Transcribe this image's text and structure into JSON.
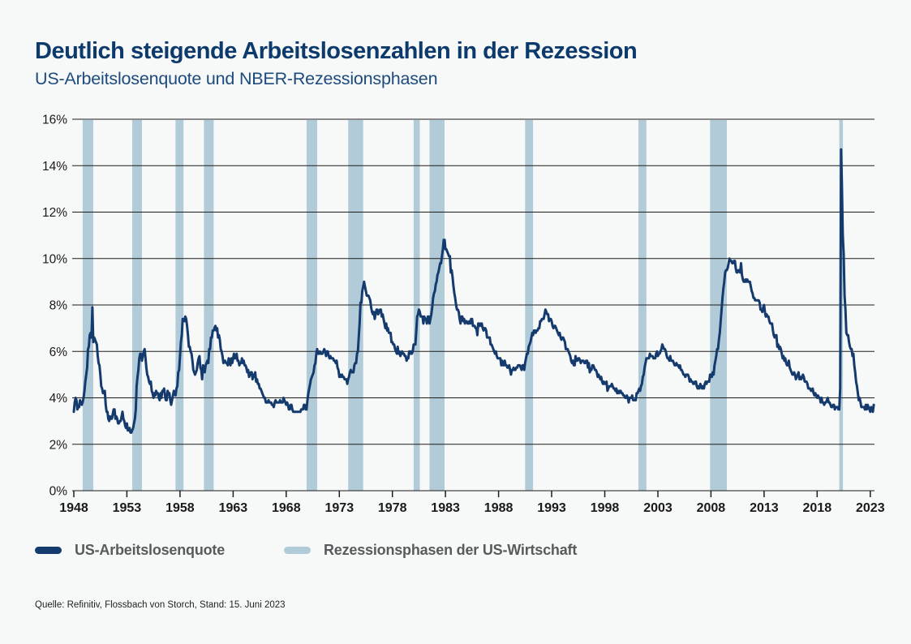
{
  "header": {
    "title": "Deutlich steigende Arbeitslosenzahlen in der Rezession",
    "subtitle": "US-Arbeitslosenquote und NBER-Rezessionsphasen"
  },
  "legend": {
    "series_label": "US-Arbeitslosenquote",
    "recession_label": "Rezessionsphasen der US-Wirtschaft"
  },
  "source_note": "Quelle: Refinitiv, Flossbach von Storch, Stand: 15. Juni 2023",
  "colors": {
    "background": "#f7f8f8",
    "title": "#0d3a6c",
    "subtitle": "#1d4b7d",
    "line": "#143a6e",
    "recession_band": "#b1ccd8",
    "grid": "#1d1d1b",
    "axis_text": "#1a1a1a",
    "legend_text": "#595a5c"
  },
  "chart_data": {
    "type": "line",
    "title": "Deutlich steigende Arbeitslosenzahlen in der Rezession",
    "subtitle": "US-Arbeitslosenquote und NBER-Rezessionsphasen",
    "grid": true,
    "legend_position": "bottom",
    "ylim": [
      0,
      16
    ],
    "y_tick_step": 2,
    "y_tick_suffix": "%",
    "x_start_year": 1948,
    "x_end_year": 2023.42,
    "x_tick_years": [
      1948,
      1953,
      1958,
      1963,
      1968,
      1973,
      1978,
      1983,
      1988,
      1993,
      1998,
      2003,
      2008,
      2013,
      2018,
      2023
    ],
    "recessions": [
      {
        "start": 1948.833,
        "end": 1949.833
      },
      {
        "start": 1953.5,
        "end": 1954.417
      },
      {
        "start": 1957.583,
        "end": 1958.333
      },
      {
        "start": 1960.25,
        "end": 1961.167
      },
      {
        "start": 1969.917,
        "end": 1970.917
      },
      {
        "start": 1973.833,
        "end": 1975.25
      },
      {
        "start": 1980.0,
        "end": 1980.583
      },
      {
        "start": 1981.5,
        "end": 1982.917
      },
      {
        "start": 1990.5,
        "end": 1991.25
      },
      {
        "start": 2001.167,
        "end": 2001.917
      },
      {
        "start": 2007.917,
        "end": 2009.5
      },
      {
        "start": 2020.083,
        "end": 2020.417
      }
    ],
    "series": [
      {
        "name": "US-Arbeitslosenquote",
        "frequency": "monthly",
        "start": "1948-01",
        "end": "2023-05",
        "unit": "%",
        "values": [
          3.4,
          3.8,
          4.0,
          3.9,
          3.5,
          3.6,
          3.6,
          3.9,
          3.8,
          3.7,
          3.8,
          4.0,
          4.3,
          4.7,
          5.0,
          5.3,
          6.1,
          6.2,
          6.7,
          6.8,
          6.6,
          7.9,
          6.4,
          6.6,
          6.5,
          6.4,
          6.3,
          5.8,
          5.5,
          5.4,
          5.0,
          4.5,
          4.4,
          4.2,
          4.2,
          4.3,
          3.7,
          3.4,
          3.4,
          3.1,
          3.0,
          3.2,
          3.1,
          3.1,
          3.3,
          3.5,
          3.5,
          3.1,
          3.2,
          3.1,
          2.9,
          2.9,
          3.0,
          3.0,
          3.2,
          3.4,
          3.1,
          3.0,
          2.8,
          2.7,
          2.9,
          2.6,
          2.6,
          2.7,
          2.5,
          2.5,
          2.6,
          2.7,
          2.9,
          3.1,
          3.5,
          4.5,
          4.9,
          5.2,
          5.7,
          5.9,
          5.9,
          5.6,
          5.8,
          6.0,
          6.1,
          5.7,
          5.3,
          5.0,
          4.9,
          4.7,
          4.6,
          4.7,
          4.3,
          4.2,
          4.0,
          4.2,
          4.1,
          4.3,
          4.2,
          4.2,
          4.0,
          3.9,
          4.2,
          4.0,
          4.3,
          4.3,
          4.4,
          4.1,
          3.9,
          3.9,
          4.3,
          4.2,
          4.2,
          3.9,
          3.7,
          3.9,
          4.1,
          4.3,
          4.2,
          4.1,
          4.4,
          4.5,
          5.1,
          5.2,
          5.8,
          6.4,
          6.7,
          7.4,
          7.4,
          7.3,
          7.5,
          7.4,
          7.1,
          6.7,
          6.2,
          6.2,
          6.0,
          5.9,
          5.6,
          5.2,
          5.1,
          5.0,
          5.1,
          5.2,
          5.5,
          5.7,
          5.8,
          5.3,
          5.2,
          4.8,
          5.4,
          5.2,
          5.1,
          5.4,
          5.5,
          5.6,
          5.5,
          6.1,
          6.1,
          6.6,
          6.6,
          6.9,
          6.9,
          7.0,
          7.1,
          6.9,
          7.0,
          6.6,
          6.7,
          6.5,
          6.1,
          6.0,
          5.8,
          5.5,
          5.6,
          5.6,
          5.5,
          5.5,
          5.4,
          5.7,
          5.6,
          5.4,
          5.7,
          5.5,
          5.7,
          5.9,
          5.7,
          5.7,
          5.9,
          5.6,
          5.6,
          5.4,
          5.5,
          5.5,
          5.7,
          5.5,
          5.6,
          5.4,
          5.4,
          5.3,
          5.1,
          5.2,
          4.9,
          5.0,
          5.1,
          5.1,
          4.8,
          5.0,
          4.9,
          5.1,
          4.7,
          4.8,
          4.6,
          4.6,
          4.4,
          4.4,
          4.3,
          4.2,
          4.1,
          4.0,
          4.0,
          3.8,
          3.8,
          3.8,
          3.9,
          3.8,
          3.8,
          3.8,
          3.7,
          3.7,
          3.6,
          3.8,
          3.9,
          3.8,
          3.8,
          3.8,
          3.8,
          3.9,
          3.8,
          3.8,
          3.8,
          4.0,
          3.9,
          3.8,
          3.7,
          3.8,
          3.7,
          3.5,
          3.5,
          3.7,
          3.7,
          3.5,
          3.4,
          3.4,
          3.4,
          3.4,
          3.4,
          3.4,
          3.4,
          3.4,
          3.4,
          3.5,
          3.5,
          3.5,
          3.7,
          3.7,
          3.5,
          3.5,
          3.9,
          4.2,
          4.4,
          4.6,
          4.8,
          4.9,
          5.0,
          5.1,
          5.4,
          5.5,
          5.9,
          6.1,
          5.9,
          5.9,
          6.0,
          5.9,
          5.9,
          5.9,
          6.0,
          6.1,
          6.0,
          5.8,
          6.0,
          6.0,
          5.8,
          5.7,
          5.8,
          5.7,
          5.7,
          5.7,
          5.6,
          5.6,
          5.5,
          5.6,
          5.3,
          5.2,
          4.9,
          5.0,
          4.9,
          5.0,
          4.9,
          4.9,
          4.8,
          4.8,
          4.8,
          4.6,
          4.8,
          4.9,
          5.1,
          5.2,
          5.1,
          5.1,
          5.1,
          5.4,
          5.5,
          5.5,
          5.9,
          6.0,
          6.6,
          7.2,
          8.1,
          8.1,
          8.6,
          8.8,
          9.0,
          8.8,
          8.6,
          8.4,
          8.4,
          8.4,
          8.3,
          8.2,
          7.9,
          7.7,
          7.6,
          7.7,
          7.4,
          7.6,
          7.8,
          7.8,
          7.6,
          7.7,
          7.8,
          7.8,
          7.5,
          7.6,
          7.4,
          7.2,
          7.0,
          7.2,
          6.9,
          7.0,
          6.8,
          6.8,
          6.8,
          6.4,
          6.4,
          6.3,
          6.3,
          6.1,
          6.0,
          5.9,
          6.2,
          5.9,
          6.0,
          5.8,
          5.9,
          6.0,
          5.9,
          5.9,
          5.8,
          5.8,
          5.6,
          5.7,
          5.7,
          6.0,
          5.9,
          6.0,
          5.9,
          6.0,
          6.3,
          6.3,
          6.3,
          6.9,
          7.5,
          7.6,
          7.8,
          7.7,
          7.5,
          7.5,
          7.5,
          7.2,
          7.5,
          7.4,
          7.4,
          7.2,
          7.5,
          7.5,
          7.2,
          7.4,
          7.6,
          7.9,
          8.3,
          8.5,
          8.6,
          8.9,
          9.0,
          9.3,
          9.4,
          9.6,
          9.8,
          9.8,
          10.1,
          10.4,
          10.8,
          10.8,
          10.4,
          10.4,
          10.3,
          10.2,
          10.1,
          10.1,
          9.4,
          9.5,
          9.2,
          8.8,
          8.5,
          8.3,
          8.0,
          7.8,
          7.8,
          7.7,
          7.4,
          7.2,
          7.5,
          7.5,
          7.3,
          7.4,
          7.2,
          7.3,
          7.3,
          7.2,
          7.2,
          7.3,
          7.2,
          7.4,
          7.4,
          7.1,
          7.1,
          7.1,
          7.0,
          7.0,
          6.7,
          7.2,
          7.2,
          7.1,
          7.2,
          7.2,
          7.0,
          6.9,
          7.0,
          7.0,
          6.9,
          6.6,
          6.6,
          6.6,
          6.6,
          6.3,
          6.3,
          6.2,
          6.1,
          6.0,
          5.9,
          6.0,
          5.8,
          5.7,
          5.7,
          5.7,
          5.7,
          5.4,
          5.6,
          5.4,
          5.4,
          5.6,
          5.4,
          5.4,
          5.3,
          5.3,
          5.4,
          5.2,
          5.0,
          5.2,
          5.2,
          5.3,
          5.2,
          5.2,
          5.3,
          5.3,
          5.4,
          5.4,
          5.4,
          5.3,
          5.2,
          5.4,
          5.4,
          5.2,
          5.5,
          5.7,
          5.9,
          5.9,
          6.2,
          6.3,
          6.4,
          6.6,
          6.8,
          6.7,
          6.9,
          6.9,
          6.8,
          6.9,
          6.9,
          7.0,
          7.0,
          7.3,
          7.3,
          7.4,
          7.4,
          7.4,
          7.6,
          7.8,
          7.7,
          7.6,
          7.6,
          7.3,
          7.4,
          7.4,
          7.3,
          7.1,
          7.0,
          7.1,
          7.1,
          7.0,
          6.9,
          6.8,
          6.7,
          6.8,
          6.6,
          6.5,
          6.6,
          6.6,
          6.5,
          6.4,
          6.1,
          6.1,
          6.1,
          6.0,
          5.9,
          5.8,
          5.6,
          5.5,
          5.6,
          5.4,
          5.4,
          5.8,
          5.6,
          5.6,
          5.7,
          5.7,
          5.6,
          5.5,
          5.6,
          5.6,
          5.6,
          5.5,
          5.5,
          5.6,
          5.6,
          5.3,
          5.5,
          5.1,
          5.2,
          5.2,
          5.4,
          5.4,
          5.3,
          5.2,
          5.2,
          5.1,
          4.9,
          5.0,
          4.9,
          4.8,
          4.9,
          4.7,
          4.6,
          4.7,
          4.6,
          4.6,
          4.7,
          4.3,
          4.4,
          4.5,
          4.5,
          4.5,
          4.6,
          4.5,
          4.4,
          4.4,
          4.3,
          4.4,
          4.2,
          4.3,
          4.2,
          4.3,
          4.3,
          4.2,
          4.2,
          4.1,
          4.1,
          4.0,
          4.0,
          4.1,
          4.0,
          3.8,
          4.0,
          4.0,
          4.0,
          4.1,
          3.9,
          3.9,
          3.9,
          3.9,
          4.2,
          4.2,
          4.3,
          4.4,
          4.3,
          4.5,
          4.6,
          4.9,
          5.0,
          5.3,
          5.5,
          5.7,
          5.7,
          5.7,
          5.7,
          5.9,
          5.8,
          5.8,
          5.8,
          5.7,
          5.7,
          5.7,
          5.9,
          6.0,
          5.8,
          5.9,
          5.9,
          6.0,
          6.1,
          6.3,
          6.2,
          6.1,
          6.1,
          6.0,
          5.8,
          5.7,
          5.7,
          5.6,
          5.8,
          5.6,
          5.6,
          5.6,
          5.5,
          5.4,
          5.4,
          5.5,
          5.4,
          5.4,
          5.3,
          5.4,
          5.2,
          5.2,
          5.1,
          5.0,
          5.0,
          4.9,
          5.0,
          5.0,
          5.0,
          4.9,
          4.7,
          4.8,
          4.7,
          4.7,
          4.6,
          4.6,
          4.7,
          4.7,
          4.5,
          4.4,
          4.5,
          4.4,
          4.6,
          4.5,
          4.4,
          4.5,
          4.4,
          4.6,
          4.7,
          4.6,
          4.7,
          4.7,
          4.7,
          5.0,
          5.0,
          4.9,
          5.1,
          5.0,
          5.4,
          5.6,
          5.8,
          6.1,
          6.1,
          6.5,
          6.8,
          7.3,
          7.8,
          8.3,
          8.7,
          9.0,
          9.4,
          9.5,
          9.5,
          9.6,
          9.8,
          10.0,
          9.9,
          9.9,
          9.8,
          9.8,
          9.9,
          9.9,
          9.6,
          9.4,
          9.4,
          9.5,
          9.5,
          9.4,
          9.8,
          9.3,
          9.1,
          9.0,
          9.0,
          9.1,
          9.0,
          9.1,
          9.0,
          9.0,
          9.0,
          8.8,
          8.6,
          8.5,
          8.3,
          8.3,
          8.2,
          8.2,
          8.2,
          8.2,
          8.2,
          8.1,
          7.8,
          7.8,
          7.7,
          7.9,
          8.0,
          7.7,
          7.5,
          7.6,
          7.5,
          7.5,
          7.3,
          7.2,
          7.2,
          7.2,
          6.9,
          6.7,
          6.6,
          6.7,
          6.7,
          6.2,
          6.3,
          6.1,
          6.2,
          6.1,
          5.9,
          5.7,
          5.8,
          5.6,
          5.7,
          5.5,
          5.4,
          5.4,
          5.6,
          5.3,
          5.2,
          5.1,
          5.0,
          5.0,
          5.1,
          5.0,
          4.8,
          4.9,
          5.0,
          5.1,
          4.8,
          4.9,
          4.8,
          4.9,
          5.0,
          4.9,
          4.7,
          4.7,
          4.7,
          4.6,
          4.4,
          4.4,
          4.4,
          4.3,
          4.3,
          4.4,
          4.2,
          4.1,
          4.2,
          4.1,
          4.0,
          4.1,
          4.0,
          4.0,
          3.8,
          4.0,
          3.8,
          3.8,
          3.7,
          3.8,
          3.8,
          3.9,
          4.0,
          3.8,
          3.8,
          3.7,
          3.6,
          3.6,
          3.7,
          3.7,
          3.5,
          3.6,
          3.6,
          3.6,
          3.5,
          3.5,
          4.4,
          14.7,
          13.2,
          11.0,
          10.2,
          8.4,
          7.8,
          6.8,
          6.7,
          6.7,
          6.4,
          6.2,
          6.1,
          6.1,
          5.8,
          5.9,
          5.4,
          5.1,
          4.7,
          4.5,
          4.2,
          3.9,
          4.0,
          3.8,
          3.6,
          3.6,
          3.6,
          3.6,
          3.5,
          3.7,
          3.5,
          3.7,
          3.6,
          3.5,
          3.4,
          3.6,
          3.5,
          3.4,
          3.7
        ]
      }
    ]
  }
}
